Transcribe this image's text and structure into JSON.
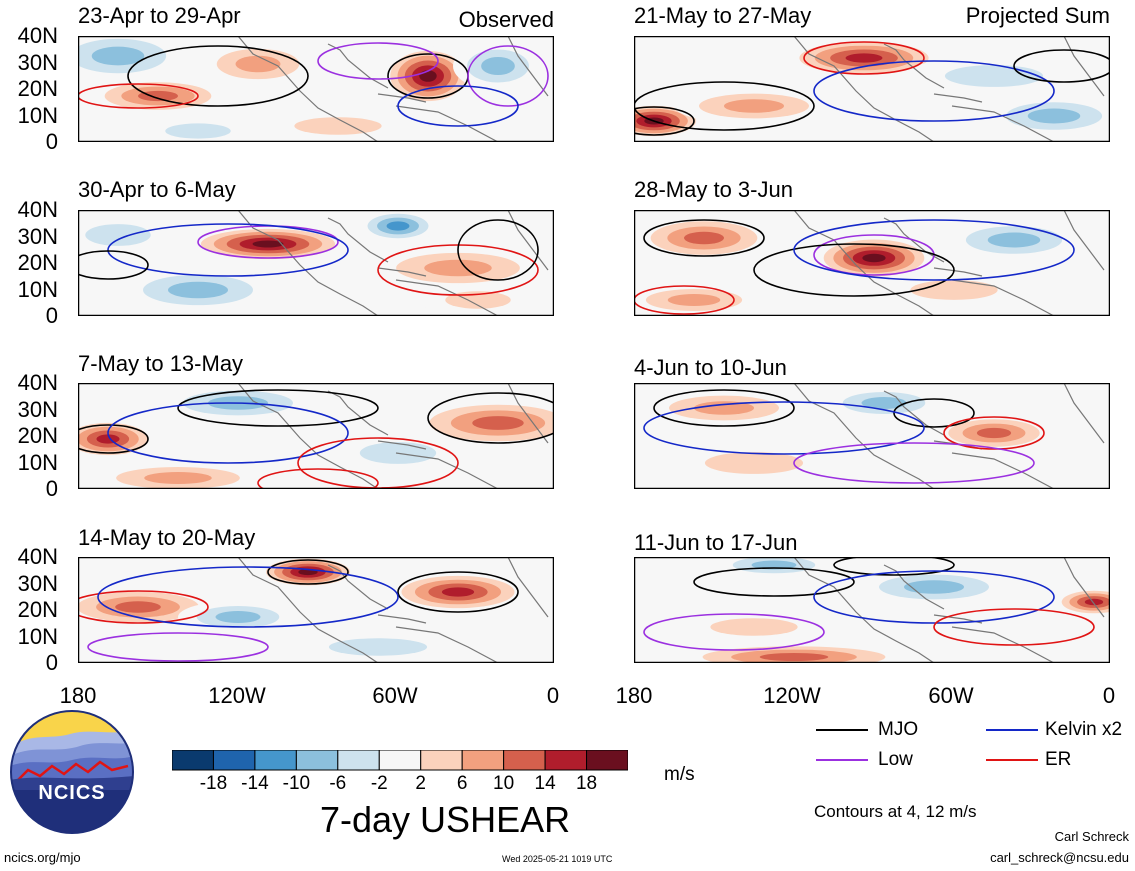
{
  "panels_left": [
    {
      "title": "23-Apr to 29-Apr",
      "label": "Observed"
    },
    {
      "title": "30-Apr to 6-May",
      "label": ""
    },
    {
      "title": "7-May to 13-May",
      "label": ""
    },
    {
      "title": "14-May to 20-May",
      "label": ""
    }
  ],
  "panels_right": [
    {
      "title": "21-May to 27-May",
      "label": "Projected Sum"
    },
    {
      "title": "28-May to 3-Jun",
      "label": ""
    },
    {
      "title": "4-Jun to 10-Jun",
      "label": ""
    },
    {
      "title": "11-Jun to 17-Jun",
      "label": ""
    }
  ],
  "y_ticks": [
    "40N",
    "30N",
    "20N",
    "10N",
    "0"
  ],
  "x_ticks": [
    "180",
    "120W",
    "60W",
    "0"
  ],
  "colorbar": {
    "labels": [
      "-18",
      "-14",
      "-10",
      "-6",
      "-2",
      "2",
      "6",
      "10",
      "14",
      "18"
    ],
    "colors": [
      "#0a3a6e",
      "#1f64ad",
      "#4596cc",
      "#8cc0dd",
      "#cde2ee",
      "#f7f7f7",
      "#fbd2bc",
      "#f2a07f",
      "#d5604d",
      "#b01d2c",
      "#6a0f1f"
    ],
    "units": "m/s"
  },
  "main_title": "7-day USHEAR",
  "legend": [
    {
      "label": "MJO",
      "color": "#000000"
    },
    {
      "label": "Kelvin x2",
      "color": "#1428c8"
    },
    {
      "label": "Low",
      "color": "#9b30e0"
    },
    {
      "label": "ER",
      "color": "#e01414"
    }
  ],
  "contour_note": "Contours at 4, 12 m/s",
  "logo_text": "NCICS",
  "footer": {
    "url": "ncics.org/mjo",
    "timestamp": "Wed 2025-05-21 1019 UTC",
    "author": "Carl Schreck",
    "email": "carl_schreck@ncsu.edu"
  }
}
